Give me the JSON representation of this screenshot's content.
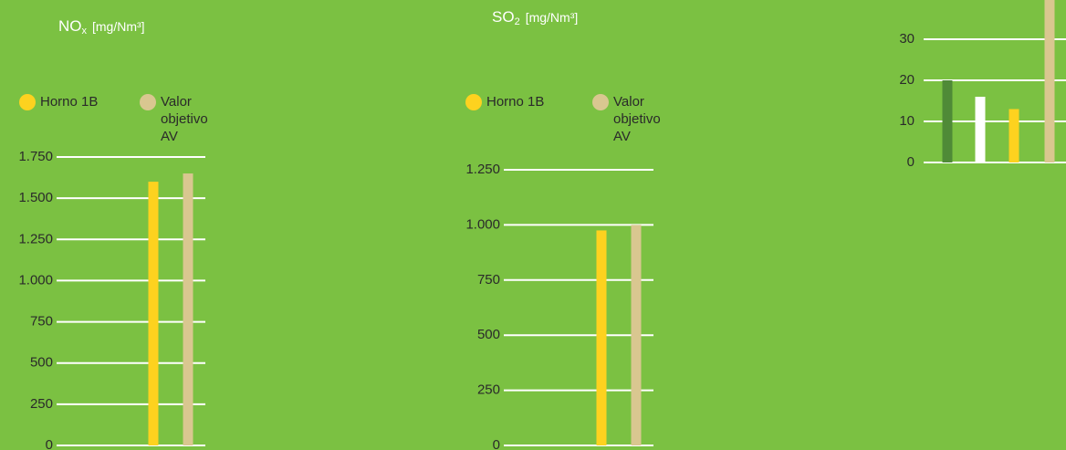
{
  "chart_data": [
    {
      "type": "bar",
      "title": "NO",
      "title_subscript": "x",
      "unit": "[mg/Nm³]",
      "categories": [
        null
      ],
      "series": [
        {
          "name": "Horno 1B",
          "color": "#fdd21f",
          "values": [
            1600
          ]
        },
        {
          "name": "Valor objetivo AV",
          "color": "#d9c790",
          "values": [
            1650
          ]
        }
      ],
      "ylim": [
        0,
        1750
      ],
      "yticks": [
        0,
        250,
        500,
        750,
        {
          "value": 1000,
          "label": "1.000"
        },
        {
          "value": 1250,
          "label": "1.250"
        },
        {
          "value": 1500,
          "label": "1.500"
        },
        {
          "value": 1750,
          "label": "1.750"
        }
      ],
      "grid": true
    },
    {
      "type": "bar",
      "title": "SO",
      "title_subscript": "2",
      "unit": "[mg/Nm³]",
      "categories": [
        null
      ],
      "series": [
        {
          "name": "Horno 1B",
          "color": "#fdd21f",
          "values": [
            975
          ]
        },
        {
          "name": "Valor objetivo AV",
          "color": "#d9c790",
          "values": [
            1000
          ]
        }
      ],
      "ylim": [
        0,
        1250
      ],
      "yticks": [
        0,
        250,
        500,
        750,
        {
          "value": 1000,
          "label": "1.000"
        },
        {
          "value": 1250,
          "label": "1.250"
        }
      ],
      "grid": true
    },
    {
      "type": "bar",
      "categories": [
        null
      ],
      "series": [
        {
          "color": "#4f8a37",
          "values": [
            20
          ]
        },
        {
          "color": "#ffffff",
          "values": [
            16
          ]
        },
        {
          "color": "#fdd21f",
          "values": [
            13
          ]
        },
        {
          "color": "#d9c790",
          "values": [
            40
          ]
        }
      ],
      "ylim": [
        0,
        40
      ],
      "yticks": [
        0,
        10,
        20,
        30
      ],
      "grid": true
    }
  ]
}
